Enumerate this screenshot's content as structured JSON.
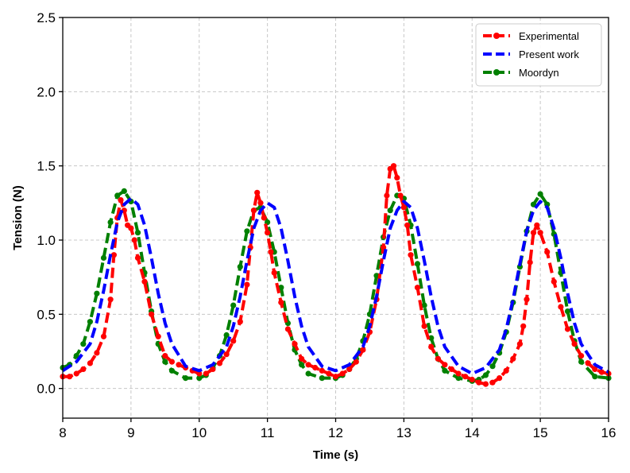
{
  "chart_data": {
    "type": "line",
    "title": "",
    "xlabel": "Time (s)",
    "ylabel": "Tension (N)",
    "xlim": [
      8,
      16
    ],
    "ylim": [
      -0.2,
      2.5
    ],
    "xticks": [
      "8",
      "9",
      "10",
      "11",
      "12",
      "13",
      "14",
      "15",
      "16"
    ],
    "yticks": [
      "0.0",
      "0.5",
      "1.0",
      "1.5",
      "2.0",
      "2.5"
    ],
    "grid": true,
    "legend_position": "top-right",
    "series": [
      {
        "name": "Experimental",
        "color": "#ff0000",
        "style": "dashed-markers",
        "x": [
          8.0,
          8.1,
          8.2,
          8.3,
          8.4,
          8.5,
          8.6,
          8.7,
          8.75,
          8.8,
          8.85,
          8.9,
          8.95,
          9.0,
          9.05,
          9.1,
          9.2,
          9.3,
          9.4,
          9.5,
          9.6,
          9.7,
          9.8,
          9.9,
          10.0,
          10.1,
          10.2,
          10.3,
          10.4,
          10.5,
          10.6,
          10.7,
          10.75,
          10.8,
          10.85,
          10.9,
          10.95,
          11.0,
          11.05,
          11.1,
          11.2,
          11.3,
          11.4,
          11.5,
          11.6,
          11.7,
          11.8,
          11.9,
          12.0,
          12.1,
          12.2,
          12.3,
          12.4,
          12.5,
          12.6,
          12.7,
          12.75,
          12.8,
          12.85,
          12.9,
          12.95,
          13.0,
          13.05,
          13.1,
          13.2,
          13.3,
          13.4,
          13.5,
          13.6,
          13.7,
          13.8,
          13.9,
          14.0,
          14.1,
          14.2,
          14.3,
          14.4,
          14.5,
          14.6,
          14.7,
          14.75,
          14.8,
          14.85,
          14.9,
          14.95,
          15.0,
          15.1,
          15.2,
          15.3,
          15.4,
          15.5,
          15.6,
          15.7,
          15.8,
          15.9,
          16.0
        ],
        "y": [
          0.08,
          0.08,
          0.1,
          0.13,
          0.17,
          0.24,
          0.35,
          0.6,
          0.9,
          1.15,
          1.27,
          1.2,
          1.1,
          1.08,
          1.0,
          0.88,
          0.72,
          0.5,
          0.35,
          0.22,
          0.18,
          0.16,
          0.14,
          0.12,
          0.1,
          0.1,
          0.13,
          0.17,
          0.23,
          0.32,
          0.45,
          0.7,
          0.95,
          1.2,
          1.32,
          1.25,
          1.15,
          1.05,
          0.92,
          0.78,
          0.58,
          0.4,
          0.3,
          0.2,
          0.16,
          0.14,
          0.12,
          0.1,
          0.08,
          0.1,
          0.13,
          0.18,
          0.26,
          0.38,
          0.6,
          0.95,
          1.3,
          1.48,
          1.5,
          1.42,
          1.3,
          1.22,
          1.1,
          0.9,
          0.68,
          0.42,
          0.28,
          0.2,
          0.16,
          0.13,
          0.1,
          0.08,
          0.06,
          0.04,
          0.03,
          0.04,
          0.07,
          0.12,
          0.2,
          0.3,
          0.42,
          0.6,
          0.85,
          1.05,
          1.1,
          1.05,
          0.92,
          0.72,
          0.55,
          0.4,
          0.3,
          0.22,
          0.17,
          0.13,
          0.11,
          0.1
        ]
      },
      {
        "name": "Present work",
        "color": "#0000ff",
        "style": "dashed",
        "x": [
          8.0,
          8.2,
          8.4,
          8.5,
          8.6,
          8.7,
          8.8,
          8.9,
          9.0,
          9.1,
          9.2,
          9.3,
          9.4,
          9.5,
          9.6,
          9.8,
          10.0,
          10.2,
          10.4,
          10.5,
          10.6,
          10.7,
          10.8,
          10.9,
          11.0,
          11.1,
          11.2,
          11.3,
          11.4,
          11.5,
          11.6,
          11.8,
          12.0,
          12.2,
          12.4,
          12.5,
          12.6,
          12.7,
          12.8,
          12.9,
          13.0,
          13.1,
          13.2,
          13.3,
          13.4,
          13.5,
          13.6,
          13.8,
          14.0,
          14.2,
          14.4,
          14.5,
          14.6,
          14.7,
          14.8,
          14.9,
          15.0,
          15.1,
          15.2,
          15.3,
          15.4,
          15.5,
          15.6,
          15.8,
          16.0
        ],
        "y": [
          0.12,
          0.18,
          0.3,
          0.45,
          0.66,
          0.9,
          1.12,
          1.24,
          1.28,
          1.24,
          1.1,
          0.88,
          0.64,
          0.44,
          0.3,
          0.15,
          0.12,
          0.16,
          0.28,
          0.42,
          0.62,
          0.86,
          1.08,
          1.2,
          1.25,
          1.22,
          1.08,
          0.86,
          0.62,
          0.42,
          0.28,
          0.15,
          0.12,
          0.16,
          0.28,
          0.42,
          0.62,
          0.86,
          1.08,
          1.2,
          1.26,
          1.22,
          1.08,
          0.86,
          0.62,
          0.42,
          0.28,
          0.15,
          0.1,
          0.14,
          0.26,
          0.4,
          0.6,
          0.84,
          1.06,
          1.2,
          1.26,
          1.22,
          1.08,
          0.88,
          0.64,
          0.44,
          0.3,
          0.16,
          0.11
        ]
      },
      {
        "name": "Moordyn",
        "color": "#008000",
        "style": "dashed-markers",
        "x": [
          8.0,
          8.1,
          8.2,
          8.3,
          8.4,
          8.5,
          8.6,
          8.7,
          8.8,
          8.9,
          9.0,
          9.1,
          9.2,
          9.3,
          9.4,
          9.5,
          9.6,
          9.8,
          10.0,
          10.1,
          10.2,
          10.3,
          10.4,
          10.5,
          10.6,
          10.7,
          10.8,
          10.9,
          11.0,
          11.1,
          11.2,
          11.3,
          11.4,
          11.5,
          11.6,
          11.8,
          12.0,
          12.1,
          12.2,
          12.3,
          12.4,
          12.5,
          12.6,
          12.7,
          12.8,
          12.9,
          13.0,
          13.1,
          13.2,
          13.3,
          13.4,
          13.5,
          13.6,
          13.8,
          14.0,
          14.1,
          14.2,
          14.3,
          14.4,
          14.5,
          14.6,
          14.7,
          14.8,
          14.9,
          15.0,
          15.1,
          15.2,
          15.3,
          15.4,
          15.5,
          15.6,
          15.8,
          16.0
        ],
        "y": [
          0.14,
          0.16,
          0.22,
          0.3,
          0.45,
          0.64,
          0.88,
          1.12,
          1.3,
          1.33,
          1.26,
          1.05,
          0.78,
          0.52,
          0.3,
          0.18,
          0.12,
          0.07,
          0.07,
          0.09,
          0.14,
          0.22,
          0.36,
          0.56,
          0.82,
          1.06,
          1.2,
          1.22,
          1.12,
          0.92,
          0.68,
          0.44,
          0.26,
          0.16,
          0.1,
          0.07,
          0.07,
          0.09,
          0.13,
          0.2,
          0.32,
          0.5,
          0.76,
          1.02,
          1.2,
          1.3,
          1.28,
          1.1,
          0.84,
          0.56,
          0.34,
          0.2,
          0.12,
          0.07,
          0.05,
          0.06,
          0.09,
          0.15,
          0.24,
          0.38,
          0.58,
          0.82,
          1.06,
          1.24,
          1.31,
          1.24,
          1.04,
          0.78,
          0.52,
          0.32,
          0.18,
          0.08,
          0.07
        ]
      }
    ]
  }
}
